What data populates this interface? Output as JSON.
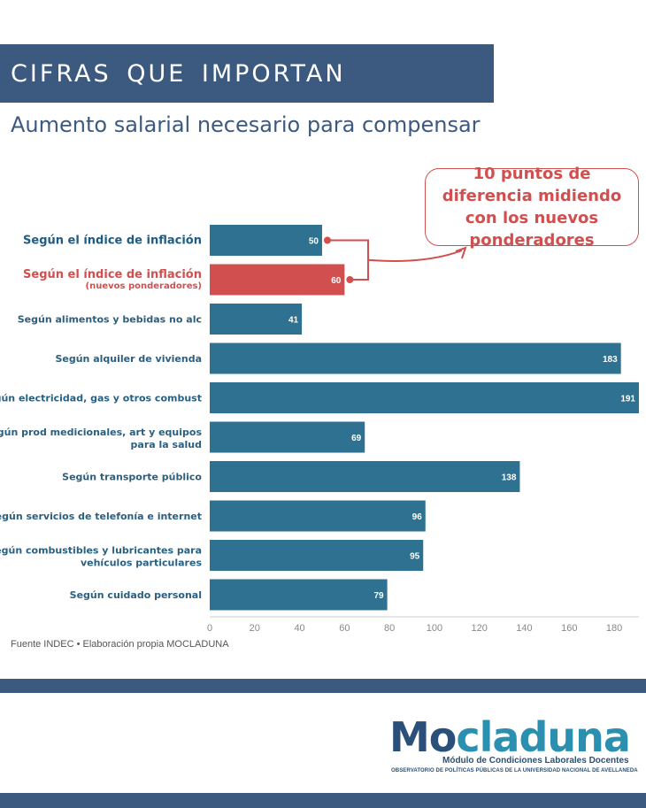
{
  "header": {
    "title": "CIFRAS QUE IMPORTAN",
    "subtitle": "Aumento salarial necesario para compensar"
  },
  "callout": {
    "text": "10 puntos de diferencia midiendo con los nuevos ponderadores"
  },
  "chart_data": {
    "type": "bar",
    "orientation": "horizontal",
    "title": "Aumento salarial necesario para compensar",
    "categories": [
      {
        "label": "Según el índice de inflación",
        "sublabel": ""
      },
      {
        "label": "Según el índice de inflación",
        "sublabel": "(nuevos ponderadores)"
      },
      {
        "label": "Según alimentos y bebidas no alc",
        "sublabel": ""
      },
      {
        "label": "Según alquiler de vivienda",
        "sublabel": ""
      },
      {
        "label": "Según electricidad, gas y otros combust",
        "sublabel": ""
      },
      {
        "label": "Según prod medicionales, art y equipos",
        "sublabel": "para la salud"
      },
      {
        "label": "Según transporte público",
        "sublabel": ""
      },
      {
        "label": "Según servicios de telefonía e internet",
        "sublabel": ""
      },
      {
        "label": "Según combustibles y lubricantes para",
        "sublabel": "vehículos particulares"
      },
      {
        "label": "Según cuidado personal",
        "sublabel": ""
      }
    ],
    "values": [
      50,
      60,
      41,
      183,
      191,
      69,
      138,
      96,
      95,
      79
    ],
    "highlight_index": 1,
    "xlim": [
      0,
      191
    ],
    "x_ticks": [
      0,
      20,
      40,
      60,
      80,
      100,
      120,
      140,
      160,
      180
    ],
    "xlabel": "",
    "ylabel": "",
    "colors": {
      "bar": "#2e7191",
      "highlight": "#d24f4f",
      "label": "#2a5f80",
      "emphasis_label": "#1f5b82",
      "tick": "#888888",
      "value_label": "#ffffff"
    }
  },
  "source": "Fuente INDEC • Elaboración propia MOCLADUNA",
  "logo": {
    "word_part1": "Mo",
    "word_part2": "claduna",
    "subtitle": "Módulo de Condiciones Laborales Docentes",
    "tagline": "OBSERVATORIO DE POLÍTICAS PÚBLICAS DE LA UNIVERSIDAD NACIONAL DE AVELLANEDA"
  }
}
